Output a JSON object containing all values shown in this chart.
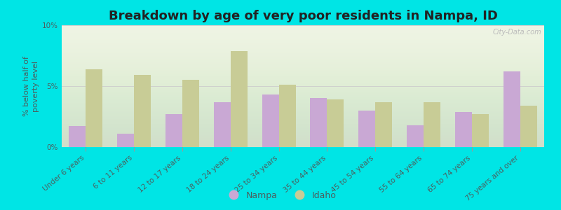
{
  "title": "Breakdown by age of very poor residents in Nampa, ID",
  "ylabel": "% below half of\npoverty level",
  "categories": [
    "Under 6 years",
    "6 to 11 years",
    "12 to 17 years",
    "18 to 24 years",
    "25 to 34 years",
    "35 to 44 years",
    "45 to 54 years",
    "55 to 64 years",
    "65 to 74 years",
    "75 years and over"
  ],
  "nampa_values": [
    1.7,
    1.1,
    2.7,
    3.7,
    4.3,
    4.0,
    3.0,
    1.8,
    2.9,
    6.2
  ],
  "idaho_values": [
    6.4,
    5.9,
    5.5,
    7.9,
    5.1,
    3.9,
    3.7,
    3.7,
    2.7,
    3.4
  ],
  "nampa_color": "#c9a8d4",
  "idaho_color": "#c8cc96",
  "background_color": "#00e5e5",
  "plot_bg_color": "#eef3e2",
  "ylim": [
    0,
    10
  ],
  "yticks": [
    0,
    5,
    10
  ],
  "ytick_labels": [
    "0%",
    "5%",
    "10%"
  ],
  "bar_width": 0.35,
  "title_fontsize": 13,
  "axis_label_fontsize": 8,
  "tick_fontsize": 7.5,
  "legend_labels": [
    "Nampa",
    "Idaho"
  ],
  "watermark": "City-Data.com",
  "text_color": "#4a6060"
}
